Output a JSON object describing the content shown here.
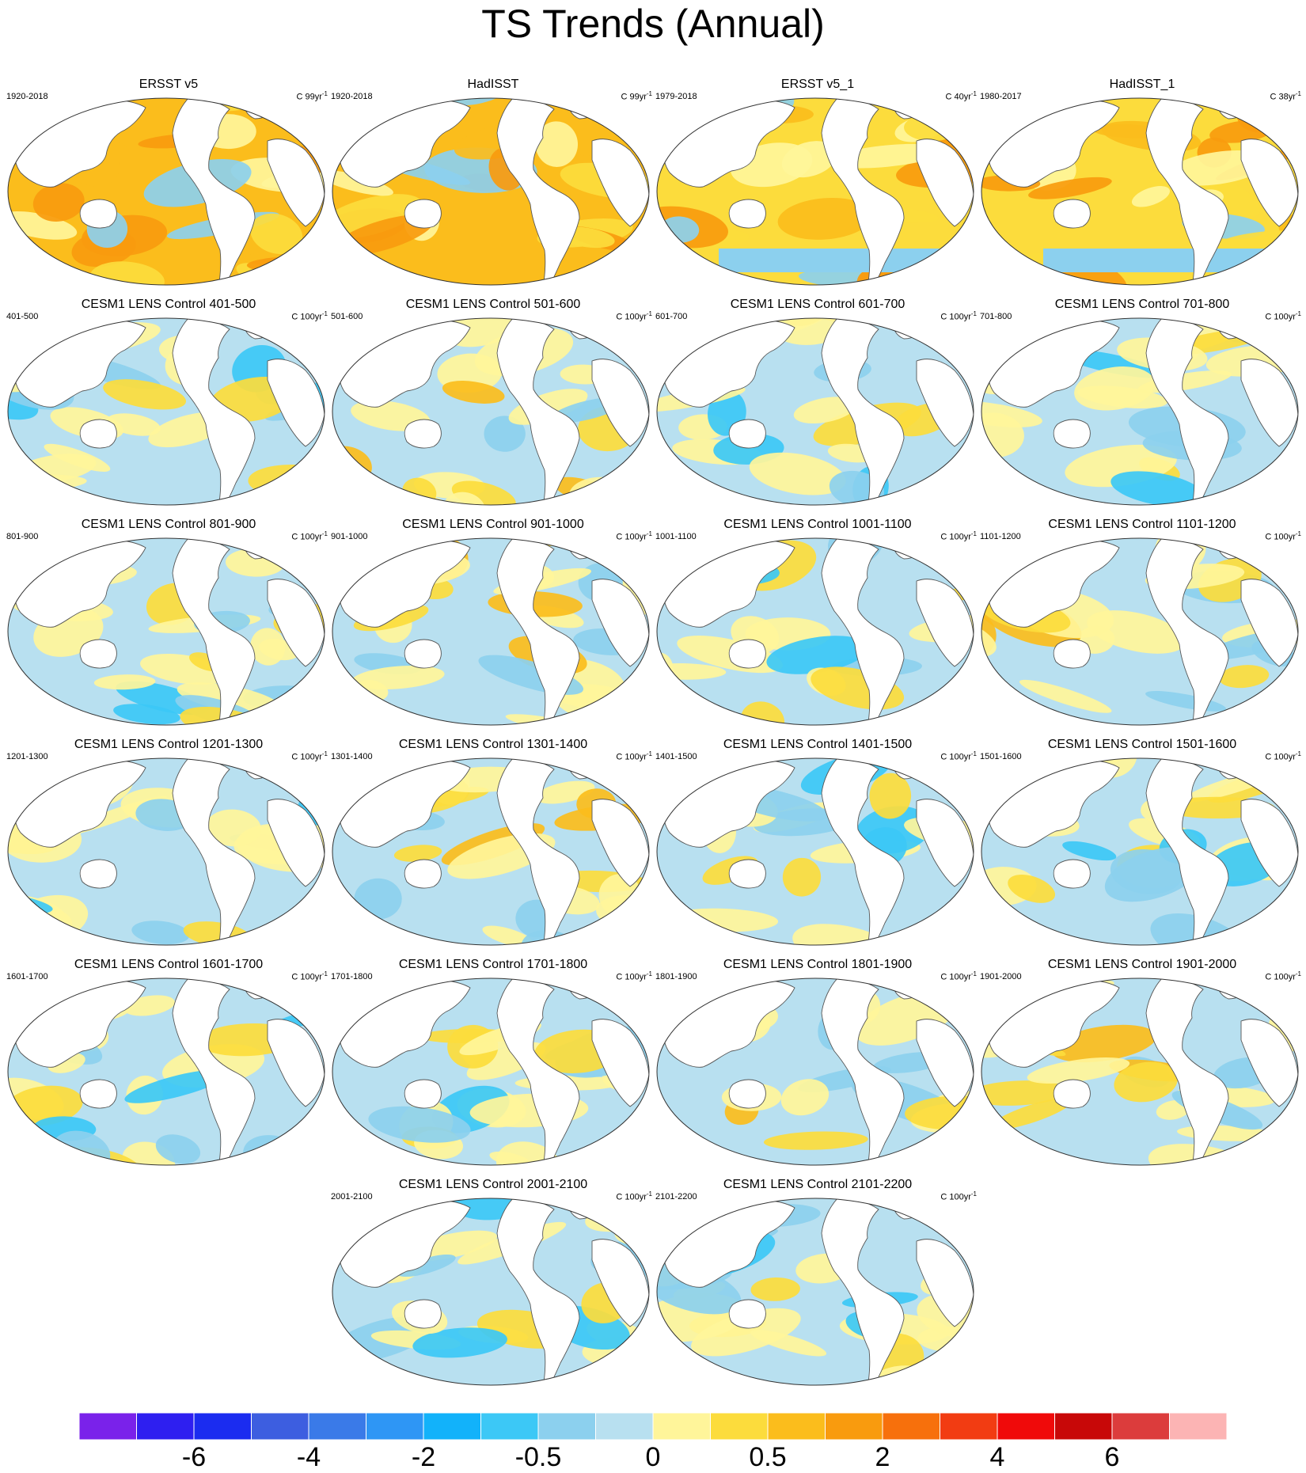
{
  "figure": {
    "title": "TS Trends (Annual)"
  },
  "panels": [
    {
      "title": "ERSST v5",
      "period": "1920-2018",
      "units": "C 99yr",
      "units_sup": "-1",
      "warm": 3
    },
    {
      "title": "HadISST",
      "period": "1920-2018",
      "units": "C 99yr",
      "units_sup": "-1",
      "warm": 3
    },
    {
      "title": "ERSST v5_1",
      "period": "1979-2018",
      "units": "C 40yr",
      "units_sup": "-1",
      "warm": 2
    },
    {
      "title": "HadISST_1",
      "period": "1980-2017",
      "units": "C 38yr",
      "units_sup": "-1",
      "warm": 2
    },
    {
      "title": "CESM1 LENS Control 401-500",
      "period": "401-500",
      "units": "C 100yr",
      "units_sup": "-1",
      "warm": 0
    },
    {
      "title": "CESM1 LENS Control 501-600",
      "period": "501-600",
      "units": "C 100yr",
      "units_sup": "-1",
      "warm": 1
    },
    {
      "title": "CESM1 LENS Control 601-700",
      "period": "601-700",
      "units": "C 100yr",
      "units_sup": "-1",
      "warm": 0
    },
    {
      "title": "CESM1 LENS Control 701-800",
      "period": "701-800",
      "units": "C 100yr",
      "units_sup": "-1",
      "warm": 0
    },
    {
      "title": "CESM1 LENS Control 801-900",
      "period": "801-900",
      "units": "C 100yr",
      "units_sup": "-1",
      "warm": 0
    },
    {
      "title": "CESM1 LENS Control 901-1000",
      "period": "901-1000",
      "units": "C 100yr",
      "units_sup": "-1",
      "warm": 1
    },
    {
      "title": "CESM1 LENS Control 1001-1100",
      "period": "1001-1100",
      "units": "C 100yr",
      "units_sup": "-1",
      "warm": 0
    },
    {
      "title": "CESM1 LENS Control 1101-1200",
      "period": "1101-1200",
      "units": "C 100yr",
      "units_sup": "-1",
      "warm": 1
    },
    {
      "title": "CESM1 LENS Control 1201-1300",
      "period": "1201-1300",
      "units": "C 100yr",
      "units_sup": "-1",
      "warm": 0
    },
    {
      "title": "CESM1 LENS Control 1301-1400",
      "period": "1301-1400",
      "units": "C 100yr",
      "units_sup": "-1",
      "warm": 1
    },
    {
      "title": "CESM1 LENS Control 1401-1500",
      "period": "1401-1500",
      "units": "C 100yr",
      "units_sup": "-1",
      "warm": 0
    },
    {
      "title": "CESM1 LENS Control 1501-1600",
      "period": "1501-1600",
      "units": "C 100yr",
      "units_sup": "-1",
      "warm": 0
    },
    {
      "title": "CESM1 LENS Control 1601-1700",
      "period": "1601-1700",
      "units": "C 100yr",
      "units_sup": "-1",
      "warm": 0
    },
    {
      "title": "CESM1 LENS Control 1701-1800",
      "period": "1701-1800",
      "units": "C 100yr",
      "units_sup": "-1",
      "warm": 0
    },
    {
      "title": "CESM1 LENS Control 1801-1900",
      "period": "1801-1900",
      "units": "C 100yr",
      "units_sup": "-1",
      "warm": 1
    },
    {
      "title": "CESM1 LENS Control 1901-2000",
      "period": "1901-2000",
      "units": "C 100yr",
      "units_sup": "-1",
      "warm": 1
    },
    {
      "title": "CESM1 LENS Control 2001-2100",
      "period": "2001-2100",
      "units": "C 100yr",
      "units_sup": "-1",
      "warm": 0
    },
    {
      "title": "CESM1 LENS Control 2101-2200",
      "period": "2101-2200",
      "units": "C 100yr",
      "units_sup": "-1",
      "warm": 0
    }
  ],
  "colorbar": {
    "colors": [
      "#7a22ea",
      "#2e1ff0",
      "#1b2cf0",
      "#3d5ee0",
      "#3a7ae8",
      "#2e96f5",
      "#12b2fa",
      "#3cc8f6",
      "#8cd0ee",
      "#b8e0f0",
      "#fff59a",
      "#fcdc3c",
      "#fbbd1c",
      "#f99b0e",
      "#f7700c",
      "#f23c12",
      "#f00a0a",
      "#c80808",
      "#dc3c3c",
      "#fcb4b4"
    ],
    "labels": [
      "-6",
      "-4",
      "-2",
      "-0.5",
      "0",
      "0.5",
      "2",
      "4",
      "6"
    ]
  }
}
